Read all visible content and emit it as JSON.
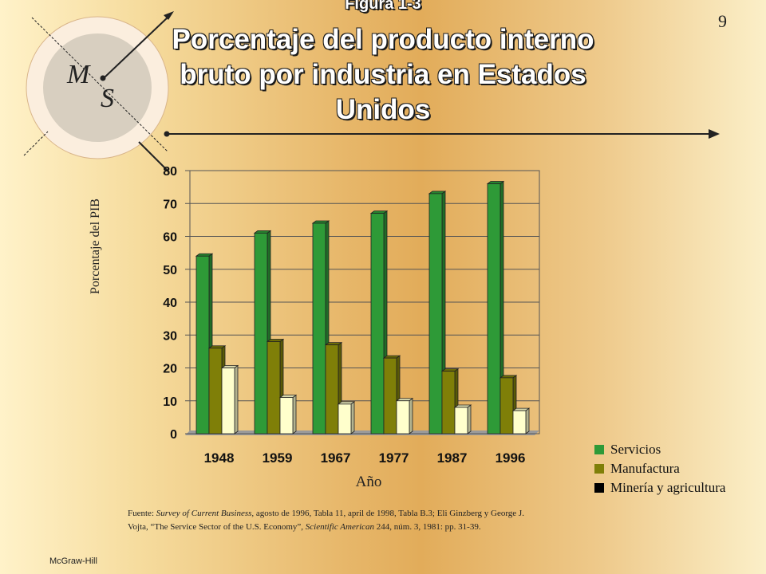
{
  "slide": {
    "figure_label": "Figura 1-3",
    "title": "Porcentaje del producto interno bruto por industria en Estados Unidos",
    "page_number": "9",
    "logo_letters": [
      "M",
      "S"
    ],
    "footer": "McGraw-Hill",
    "source_prefix": "Fuente: ",
    "source_title1": "Survey of Current Business,",
    "source_text1": " agosto de 1996, Tabla 11, april de 1998, Tabla B.3; Eli Ginzberg y George J. Vojta, “The Service Sector of the U.S. Economy”, ",
    "source_title2": "Scientific American",
    "source_text2": " 244, núm. 3, 1981: pp. 31-39."
  },
  "chart_data": {
    "type": "bar",
    "title": "Porcentaje del producto interno bruto por industria en Estados Unidos",
    "xlabel": "Año",
    "ylabel": "Porcentaje del PIB",
    "categories": [
      "1948",
      "1959",
      "1967",
      "1977",
      "1987",
      "1996"
    ],
    "ylim": [
      0,
      80
    ],
    "yticks": [
      0,
      10,
      20,
      30,
      40,
      50,
      60,
      70,
      80
    ],
    "grid": true,
    "legend_position": "bottom-right",
    "series": [
      {
        "name": "Servicios",
        "color": "#2e9a37",
        "values": [
          54,
          61,
          64,
          67,
          73,
          76
        ]
      },
      {
        "name": "Manufactura",
        "color": "#7f7f08",
        "values": [
          26,
          28,
          27,
          23,
          19,
          17
        ]
      },
      {
        "name": "Minería y agricultura",
        "color": "#ffffcc",
        "legend_color": "#000000",
        "values": [
          20,
          11,
          9,
          10,
          8,
          7
        ]
      }
    ]
  }
}
